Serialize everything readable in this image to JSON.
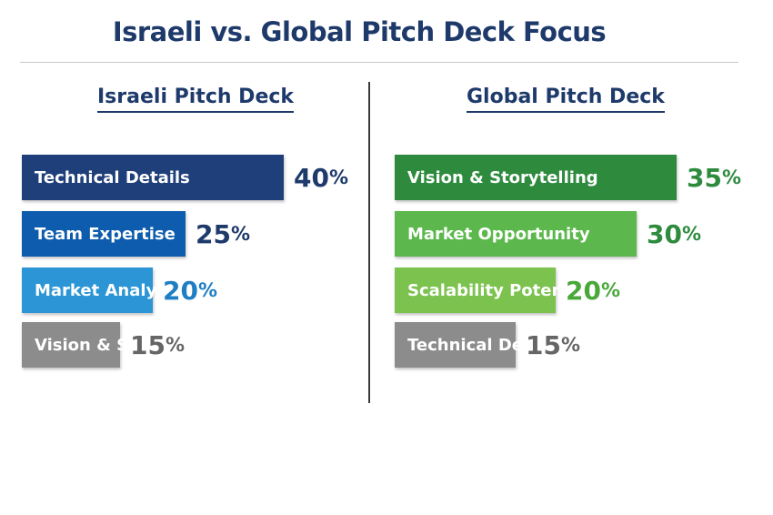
{
  "title": "Israeli vs. Global Pitch Deck Focus",
  "chart_data": [
    {
      "type": "bar",
      "orientation": "horizontal",
      "title": "Israeli Pitch Deck",
      "categories": [
        "Technical Details",
        "Team Expertise",
        "Market Analysis",
        "Vision & Storytelling"
      ],
      "values": [
        40,
        25,
        20,
        15
      ],
      "unit": "%",
      "colors": [
        "#1e3f7a",
        "#0e5cad",
        "#2b95d6",
        "#8c8c8c"
      ],
      "value_colors": [
        "#1e3a6b",
        "#1e3a6b",
        "#1e7fc4",
        "#666666"
      ]
    },
    {
      "type": "bar",
      "orientation": "horizontal",
      "title": "Global Pitch Deck",
      "categories": [
        "Vision & Storytelling",
        "Market Opportunity",
        "Scalability Potential",
        "Technical Details"
      ],
      "values": [
        35,
        30,
        20,
        15
      ],
      "unit": "%",
      "colors": [
        "#2e8b3e",
        "#5cb84c",
        "#7cc24e",
        "#8c8c8c"
      ],
      "value_colors": [
        "#2e8b3e",
        "#2e8b3e",
        "#4aa83a",
        "#666666"
      ]
    }
  ]
}
